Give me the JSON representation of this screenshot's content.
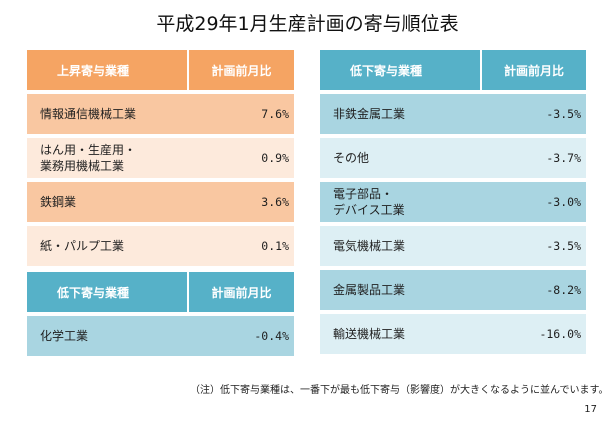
{
  "title": "平成29年1月生産計画の寄与順位表",
  "up_table": {
    "header_name": "上昇寄与業種",
    "header_rate": "計画前月比",
    "rows": [
      {
        "name": "情報通信機械工業",
        "rate": "7.6%"
      },
      {
        "name": "はん用・生産用・業務用機械工業",
        "name_line1": "はん用・生産用・",
        "name_line2": "業務用機械工業",
        "rate": "0.9%"
      },
      {
        "name": "鉄鋼業",
        "rate": "3.6%"
      },
      {
        "name": "紙・パルプ工業",
        "rate": "0.1%"
      }
    ]
  },
  "down_table_left": {
    "header_name": "低下寄与業種",
    "header_rate": "計画前月比",
    "rows": [
      {
        "name": "化学工業",
        "rate": "-0.4%"
      }
    ]
  },
  "down_table_right": {
    "header_name": "低下寄与業種",
    "header_rate": "計画前月比",
    "rows": [
      {
        "name": "非鉄金属工業",
        "rate": "-3.5%"
      },
      {
        "name": "その他",
        "rate": "-3.7%"
      },
      {
        "name": "電子部品・デバイス工業",
        "name_line1": "電子部品・",
        "name_line2": "デバイス工業",
        "rate": "-3.0%"
      },
      {
        "name": "電気機械工業",
        "rate": "-3.5%"
      },
      {
        "name": "金属製品工業",
        "rate": "-8.2%"
      },
      {
        "name": "輸送機械工業",
        "rate": "-16.0%"
      }
    ]
  },
  "note": "（注）低下寄与業種は、一番下が最も低下寄与（影響度）が大きくなるように並んでいます。",
  "page_number": "17",
  "colors": {
    "orange_header": "#f5a463",
    "orange_row_dark": "#f9c7a1",
    "orange_row_light": "#fdeadc",
    "blue_header": "#56b1c8",
    "blue_row_dark": "#a9d5e1",
    "blue_row_light": "#ddeff4"
  }
}
